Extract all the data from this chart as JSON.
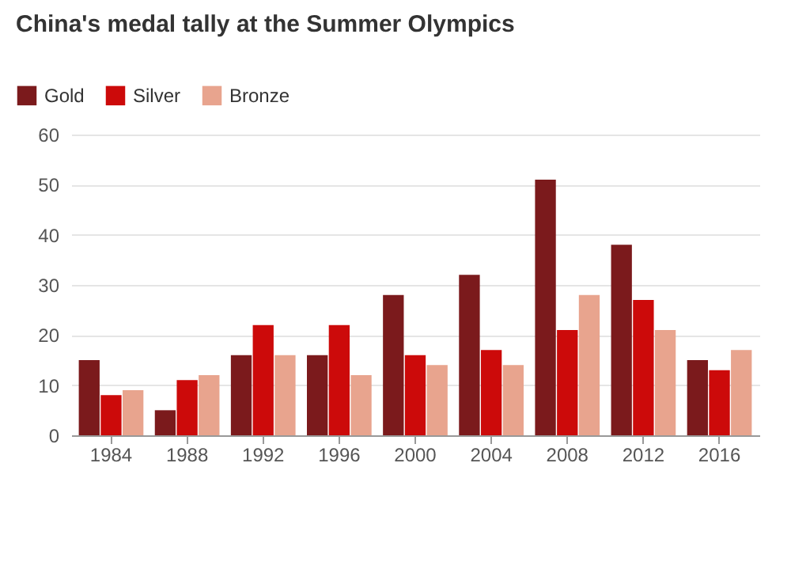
{
  "chart_data": {
    "type": "bar",
    "title": "China's medal tally at the Summer Olympics",
    "categories": [
      "1984",
      "1988",
      "1992",
      "1996",
      "2000",
      "2004",
      "2008",
      "2012",
      "2016"
    ],
    "series": [
      {
        "name": "Gold",
        "color": "#7b1a1c",
        "values": [
          15,
          5,
          16,
          16,
          28,
          32,
          51,
          38,
          15
        ]
      },
      {
        "name": "Silver",
        "color": "#cc0a0a",
        "values": [
          8,
          11,
          22,
          22,
          16,
          17,
          21,
          27,
          13
        ]
      },
      {
        "name": "Bronze",
        "color": "#e8a48e",
        "values": [
          9,
          12,
          16,
          12,
          14,
          14,
          28,
          21,
          17
        ]
      }
    ],
    "ylim": [
      0,
      60
    ],
    "yticks": [
      0,
      10,
      20,
      30,
      40,
      50,
      60
    ],
    "grid": "y",
    "legend": "top left"
  }
}
